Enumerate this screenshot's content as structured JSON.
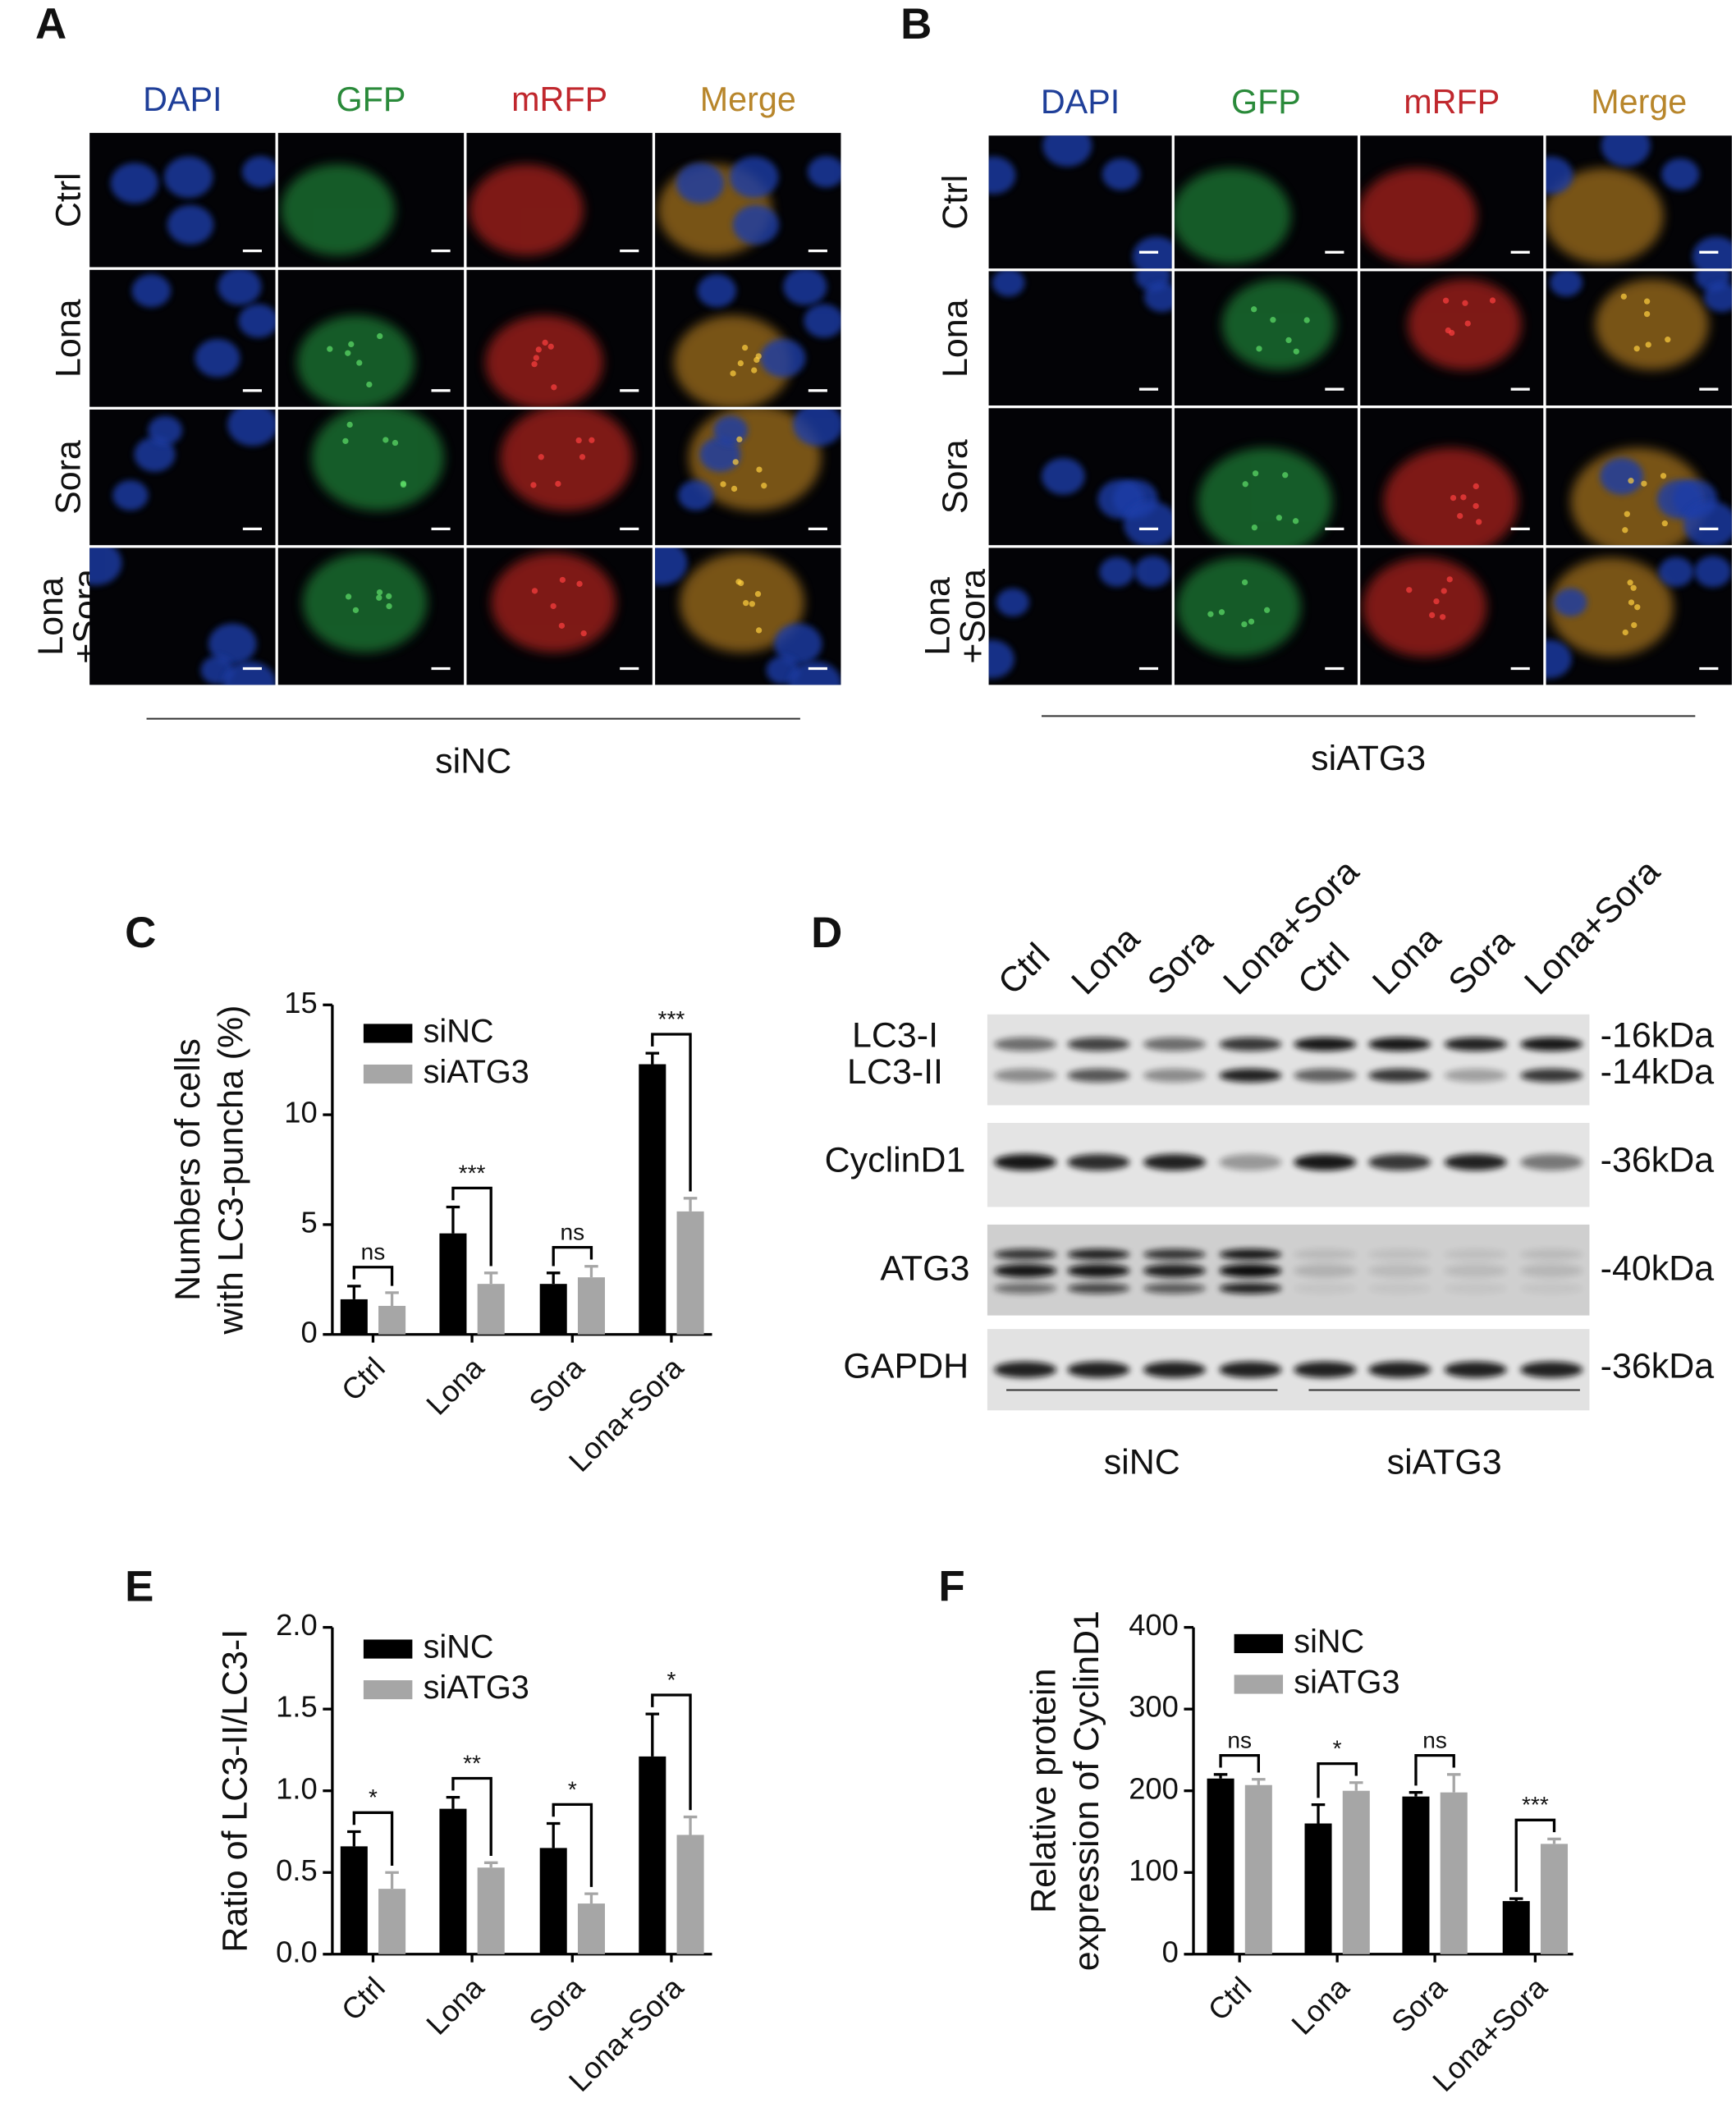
{
  "panel_a": {
    "letter": "A",
    "channels": [
      "DAPI",
      "GFP",
      "mRFP",
      "Merge"
    ],
    "rows": [
      [
        "Ctrl"
      ],
      [
        "Lona"
      ],
      [
        "Sora"
      ],
      [
        "Lona",
        "+Sora"
      ]
    ],
    "group": "siNC"
  },
  "panel_b": {
    "letter": "B",
    "channels": [
      "DAPI",
      "GFP",
      "mRFP",
      "Merge"
    ],
    "rows": [
      [
        "Ctrl"
      ],
      [
        "Lona"
      ],
      [
        "Sora"
      ],
      [
        "Lona",
        "+Sora"
      ]
    ],
    "group": "siATG3"
  },
  "panel_d": {
    "letter": "D",
    "lanes": [
      "Ctrl",
      "Lona",
      "Sora",
      "Lona+Sora",
      "Ctrl",
      "Lona",
      "Sora",
      "Lona+Sora"
    ],
    "proteins": [
      "LC3-I",
      "LC3-II",
      "CyclinD1",
      "ATG3",
      "GAPDH"
    ],
    "sizes": [
      "-16kDa",
      "-14kDa",
      "-36kDa",
      "-40kDa",
      "-36kDa"
    ],
    "groups": [
      "siNC",
      "siATG3"
    ]
  },
  "chart_data": [
    {
      "type": "bar",
      "panel_label": "C",
      "y_label": [
        "Numbers of cells",
        "with LC3-puncha (%)"
      ],
      "categories": [
        "Ctrl",
        "Lona",
        "Sora",
        "Lona+Sora"
      ],
      "series": [
        {
          "name": "siNC",
          "color": "#000000",
          "values": [
            1.6,
            4.6,
            2.3,
            12.3
          ],
          "errors": [
            0.6,
            1.2,
            0.5,
            0.5
          ]
        },
        {
          "name": "siATG3",
          "color": "#a6a6a6",
          "values": [
            1.3,
            2.3,
            2.6,
            5.6
          ],
          "errors": [
            0.6,
            0.5,
            0.5,
            0.6
          ]
        }
      ],
      "significance": [
        "ns",
        "***",
        "ns",
        "***"
      ],
      "ylim": [
        0,
        15
      ],
      "yticks": [
        0,
        5,
        10,
        15
      ]
    },
    {
      "type": "bar",
      "panel_label": "E",
      "y_label": [
        "Ratio of LC3-II/LC3-I"
      ],
      "categories": [
        "Ctrl",
        "Lona",
        "Sora",
        "Lona+Sora"
      ],
      "series": [
        {
          "name": "siNC",
          "color": "#000000",
          "values": [
            0.66,
            0.89,
            0.65,
            1.21
          ],
          "errors": [
            0.09,
            0.07,
            0.15,
            0.26
          ]
        },
        {
          "name": "siATG3",
          "color": "#a6a6a6",
          "values": [
            0.4,
            0.53,
            0.31,
            0.73
          ],
          "errors": [
            0.1,
            0.03,
            0.06,
            0.11
          ]
        }
      ],
      "significance": [
        "*",
        "**",
        "*",
        "*"
      ],
      "ylim": [
        0,
        2
      ],
      "yticks": [
        {
          "value": 0,
          "label": "0.0"
        },
        {
          "value": 0.5,
          "label": "0.5"
        },
        {
          "value": 1,
          "label": "1.0"
        },
        {
          "value": 1.5,
          "label": "1.5"
        },
        {
          "value": 2,
          "label": "2.0"
        }
      ]
    },
    {
      "type": "bar",
      "panel_label": "F",
      "y_label": [
        "Relative protein",
        "expression of CyclinD1"
      ],
      "categories": [
        "Ctrl",
        "Lona",
        "Sora",
        "Lona+Sora"
      ],
      "series": [
        {
          "name": "siNC",
          "color": "#000000",
          "values": [
            215,
            160,
            193,
            65
          ],
          "errors": [
            5,
            23,
            5,
            3
          ]
        },
        {
          "name": "siATG3",
          "color": "#a6a6a6",
          "values": [
            207,
            200,
            198,
            135
          ],
          "errors": [
            7,
            10,
            22,
            6
          ]
        }
      ],
      "significance": [
        "ns",
        "*",
        "ns",
        "***"
      ],
      "ylim": [
        0,
        400
      ],
      "yticks": [
        0,
        100,
        200,
        300,
        400
      ]
    }
  ]
}
